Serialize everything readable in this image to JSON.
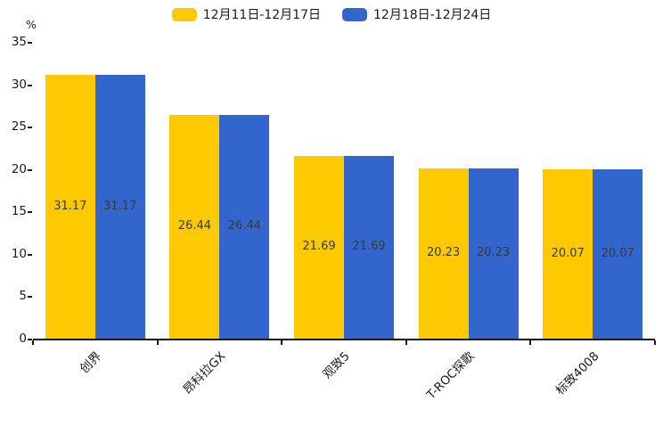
{
  "chart_data": {
    "type": "bar",
    "title": "",
    "categories": [
      "创界",
      "昂科拉GX",
      "观致5",
      "T-ROC探歌",
      "标致4008"
    ],
    "series": [
      {
        "name": "12月11日-12月17日",
        "color": "#fdca02",
        "values": [
          31.17,
          26.44,
          21.69,
          20.23,
          20.07
        ]
      },
      {
        "name": "12月18日-12月24日",
        "color": "#3366cd",
        "values": [
          31.17,
          26.44,
          21.69,
          20.23,
          20.07
        ]
      }
    ],
    "xlabel": "",
    "ylabel": "%",
    "ylim": [
      0,
      35
    ],
    "yticks": [
      0,
      5,
      10,
      15,
      20,
      25,
      30,
      35
    ],
    "grid": false,
    "legend_position": "top-center",
    "value_labels": "inside-center",
    "xtick_rotation": 45,
    "axis_color": "#1a1a1a",
    "value_label_color": "#3a3a3a"
  }
}
